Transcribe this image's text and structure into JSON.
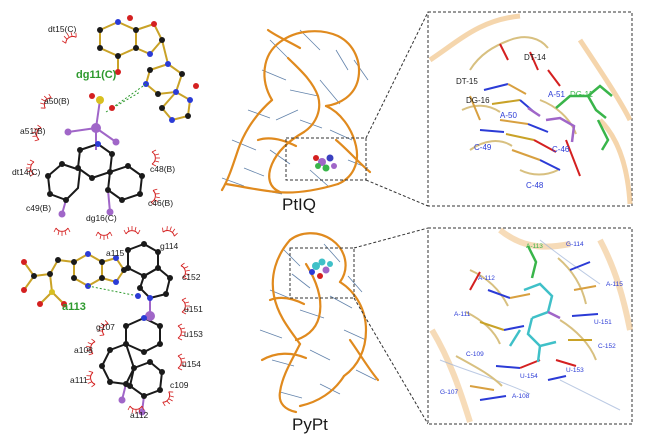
{
  "colors": {
    "carbon": "#1a1a1a",
    "nitrogen": "#2b3bd6",
    "oxygen": "#d42020",
    "phosphorus": "#d88a2a",
    "platinum": "#a066c8",
    "hbond": "#2e9a2e",
    "contact_arc": "#d42020",
    "rna_backbone": "#e08a1e",
    "ligand_green": "#39b54a",
    "ligand_cyan": "#3fc0c8",
    "dash_box": "#333333"
  },
  "icons": {
    "ligplot_top": "ligplot-interaction-diagram",
    "ligplot_bottom": "ligplot-interaction-diagram",
    "structure": "rna-ribbon-structure",
    "closeup": "stick-model-closeup"
  },
  "top_ligplot": {
    "hbond_partner": "dg11(C)",
    "residues": [
      "dt15(C)",
      "a50(B)",
      "a51(B)",
      "dt14(C)",
      "c48(B)",
      "c46(B)",
      "c49(B)",
      "dg16(C)"
    ]
  },
  "bottom_ligplot": {
    "hbond_partner": "a113",
    "residues": [
      "a115",
      "g114",
      "c152",
      "u151",
      "u153",
      "g107",
      "u154",
      "a108",
      "a111",
      "c109",
      "a112"
    ]
  },
  "structures": {
    "top_label": "PtIQ",
    "bottom_label": "PyPt"
  },
  "top_closeup": {
    "labels": [
      "DT-15",
      "DT-14",
      "DG-16",
      "A-51",
      "DG-11",
      "A-50",
      "C-49",
      "C-46",
      "C-48"
    ]
  },
  "bottom_closeup": {
    "labels": [
      "A-113",
      "G-114",
      "A-112",
      "A-115",
      "A-111",
      "U-151",
      "C-152",
      "C-109",
      "U-153",
      "U-154",
      "G-107",
      "A-108"
    ]
  }
}
